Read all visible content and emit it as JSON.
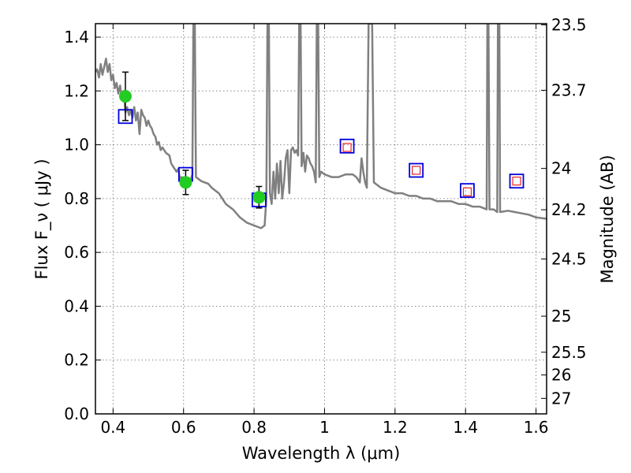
{
  "chart_data": {
    "type": "scatter",
    "xlabel": "Wavelength  λ (μm)",
    "ylabel": "Flux  F_ν  ( μJy )",
    "ylabel_right": "Magnitude (AB)",
    "xlim": [
      0.35,
      1.63
    ],
    "ylim": [
      0.0,
      1.45
    ],
    "grid": true,
    "x_ticks": [
      0.4,
      0.6,
      0.8,
      1.0,
      1.2,
      1.4,
      1.6
    ],
    "x_tick_labels": [
      "0.4",
      "0.6",
      "0.8",
      "1",
      "1.2",
      "1.4",
      "1.6"
    ],
    "y_ticks": [
      0.0,
      0.2,
      0.4,
      0.6,
      0.8,
      1.0,
      1.2,
      1.4
    ],
    "y_tick_labels": [
      "0.0",
      "0.2",
      "0.4",
      "0.6",
      "0.8",
      "1.0",
      "1.2",
      "1.4"
    ],
    "right_ticks": [
      {
        "mag": 23.5,
        "label": "23.5"
      },
      {
        "mag": 23.7,
        "label": "23.7"
      },
      {
        "mag": 24.0,
        "label": "24"
      },
      {
        "mag": 24.2,
        "label": "24.2"
      },
      {
        "mag": 24.5,
        "label": "24.5"
      },
      {
        "mag": 25.0,
        "label": "25"
      },
      {
        "mag": 25.5,
        "label": "25.5"
      },
      {
        "mag": 26.0,
        "label": "26"
      },
      {
        "mag": 27.0,
        "label": "27"
      }
    ],
    "colors": {
      "observed": "#22cc22",
      "model_square": "#0000dd",
      "photometry_square": "#ee2222",
      "spectrum": "#808080",
      "grid": "#888888"
    },
    "observed_points": [
      {
        "x": 0.435,
        "y": 1.18,
        "err": 0.09
      },
      {
        "x": 0.606,
        "y": 0.86,
        "err": 0.045
      },
      {
        "x": 0.814,
        "y": 0.805,
        "err": 0.04
      }
    ],
    "model_squares": [
      {
        "x": 0.435,
        "y": 1.105
      },
      {
        "x": 0.606,
        "y": 0.89
      },
      {
        "x": 0.814,
        "y": 0.795
      },
      {
        "x": 1.064,
        "y": 0.995
      },
      {
        "x": 1.26,
        "y": 0.905
      },
      {
        "x": 1.405,
        "y": 0.83
      },
      {
        "x": 1.545,
        "y": 0.865
      }
    ],
    "photometry_squares": [
      {
        "x": 1.064,
        "y": 0.99
      },
      {
        "x": 1.26,
        "y": 0.905
      },
      {
        "x": 1.405,
        "y": 0.825
      },
      {
        "x": 1.545,
        "y": 0.865
      }
    ],
    "spectrum": [
      [
        0.35,
        1.27
      ],
      [
        0.355,
        1.28
      ],
      [
        0.36,
        1.25
      ],
      [
        0.365,
        1.3
      ],
      [
        0.37,
        1.26
      ],
      [
        0.375,
        1.29
      ],
      [
        0.38,
        1.32
      ],
      [
        0.385,
        1.27
      ],
      [
        0.39,
        1.3
      ],
      [
        0.395,
        1.24
      ],
      [
        0.4,
        1.26
      ],
      [
        0.405,
        1.21
      ],
      [
        0.41,
        1.23
      ],
      [
        0.415,
        1.19
      ],
      [
        0.42,
        1.22
      ],
      [
        0.425,
        1.17
      ],
      [
        0.43,
        1.2
      ],
      [
        0.435,
        1.12
      ],
      [
        0.44,
        1.14
      ],
      [
        0.445,
        1.11
      ],
      [
        0.45,
        1.13
      ],
      [
        0.455,
        1.1
      ],
      [
        0.46,
        1.14
      ],
      [
        0.465,
        1.09
      ],
      [
        0.47,
        1.12
      ],
      [
        0.475,
        1.04
      ],
      [
        0.48,
        1.13
      ],
      [
        0.485,
        1.11
      ],
      [
        0.49,
        1.1
      ],
      [
        0.495,
        1.07
      ],
      [
        0.5,
        1.09
      ],
      [
        0.505,
        1.07
      ],
      [
        0.51,
        1.06
      ],
      [
        0.515,
        1.04
      ],
      [
        0.52,
        1.03
      ],
      [
        0.525,
        1.0
      ],
      [
        0.53,
        1.01
      ],
      [
        0.535,
        0.98
      ],
      [
        0.54,
        0.99
      ],
      [
        0.55,
        0.97
      ],
      [
        0.56,
        0.96
      ],
      [
        0.565,
        0.93
      ],
      [
        0.57,
        0.92
      ],
      [
        0.575,
        0.91
      ],
      [
        0.58,
        0.9
      ],
      [
        0.585,
        0.91
      ],
      [
        0.59,
        0.87
      ],
      [
        0.595,
        0.88
      ],
      [
        0.6,
        0.87
      ],
      [
        0.61,
        0.875
      ],
      [
        0.62,
        0.87
      ],
      [
        0.625,
        0.89
      ],
      [
        0.628,
        1.45
      ],
      [
        0.632,
        1.45
      ],
      [
        0.635,
        0.88
      ],
      [
        0.64,
        0.875
      ],
      [
        0.65,
        0.865
      ],
      [
        0.66,
        0.86
      ],
      [
        0.67,
        0.855
      ],
      [
        0.68,
        0.84
      ],
      [
        0.7,
        0.82
      ],
      [
        0.72,
        0.78
      ],
      [
        0.74,
        0.76
      ],
      [
        0.76,
        0.73
      ],
      [
        0.78,
        0.71
      ],
      [
        0.8,
        0.7
      ],
      [
        0.82,
        0.69
      ],
      [
        0.83,
        0.7
      ],
      [
        0.835,
        0.8
      ],
      [
        0.838,
        1.45
      ],
      [
        0.842,
        1.45
      ],
      [
        0.845,
        0.82
      ],
      [
        0.85,
        0.78
      ],
      [
        0.855,
        0.9
      ],
      [
        0.86,
        0.8
      ],
      [
        0.865,
        0.93
      ],
      [
        0.87,
        0.82
      ],
      [
        0.875,
        0.94
      ],
      [
        0.88,
        0.8
      ],
      [
        0.885,
        0.86
      ],
      [
        0.89,
        0.95
      ],
      [
        0.895,
        0.98
      ],
      [
        0.9,
        0.82
      ],
      [
        0.905,
        0.98
      ],
      [
        0.91,
        0.99
      ],
      [
        0.915,
        0.97
      ],
      [
        0.92,
        0.98
      ],
      [
        0.925,
        0.96
      ],
      [
        0.928,
        1.45
      ],
      [
        0.932,
        1.45
      ],
      [
        0.935,
        0.92
      ],
      [
        0.94,
        0.97
      ],
      [
        0.945,
        0.9
      ],
      [
        0.95,
        0.96
      ],
      [
        0.955,
        0.95
      ],
      [
        0.96,
        0.93
      ],
      [
        0.965,
        0.92
      ],
      [
        0.97,
        0.9
      ],
      [
        0.975,
        0.86
      ],
      [
        0.978,
        1.45
      ],
      [
        0.982,
        1.45
      ],
      [
        0.985,
        0.88
      ],
      [
        0.99,
        0.9
      ],
      [
        1.0,
        0.89
      ],
      [
        1.02,
        0.88
      ],
      [
        1.04,
        0.88
      ],
      [
        1.06,
        0.89
      ],
      [
        1.08,
        0.89
      ],
      [
        1.09,
        0.88
      ],
      [
        1.1,
        0.86
      ],
      [
        1.105,
        0.95
      ],
      [
        1.11,
        0.9
      ],
      [
        1.115,
        0.86
      ],
      [
        1.12,
        0.84
      ],
      [
        1.125,
        1.45
      ],
      [
        1.135,
        1.45
      ],
      [
        1.14,
        0.86
      ],
      [
        1.16,
        0.84
      ],
      [
        1.18,
        0.83
      ],
      [
        1.2,
        0.82
      ],
      [
        1.22,
        0.82
      ],
      [
        1.24,
        0.81
      ],
      [
        1.26,
        0.81
      ],
      [
        1.28,
        0.8
      ],
      [
        1.3,
        0.8
      ],
      [
        1.32,
        0.79
      ],
      [
        1.34,
        0.79
      ],
      [
        1.36,
        0.79
      ],
      [
        1.38,
        0.78
      ],
      [
        1.4,
        0.78
      ],
      [
        1.42,
        0.77
      ],
      [
        1.44,
        0.77
      ],
      [
        1.46,
        0.76
      ],
      [
        1.462,
        1.45
      ],
      [
        1.465,
        1.45
      ],
      [
        1.468,
        0.76
      ],
      [
        1.48,
        0.76
      ],
      [
        1.49,
        0.75
      ],
      [
        1.492,
        1.45
      ],
      [
        1.496,
        1.45
      ],
      [
        1.498,
        0.75
      ],
      [
        1.52,
        0.755
      ],
      [
        1.54,
        0.75
      ],
      [
        1.56,
        0.745
      ],
      [
        1.58,
        0.74
      ],
      [
        1.6,
        0.73
      ],
      [
        1.63,
        0.725
      ]
    ]
  }
}
